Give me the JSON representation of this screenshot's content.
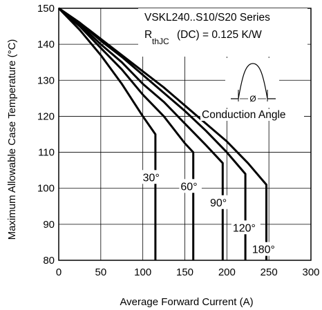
{
  "chart_data": {
    "type": "line",
    "xlabel": "Average Forward Current (A)",
    "ylabel": "Maximum Allowable Case Temperature (°C)",
    "xlim": [
      0,
      300
    ],
    "ylim": [
      80,
      150
    ],
    "x_ticks": [
      "0",
      "50",
      "100",
      "150",
      "200",
      "250",
      "300"
    ],
    "y_ticks": [
      "80",
      "90",
      "100",
      "110",
      "120",
      "130",
      "140",
      "150"
    ],
    "grid": true,
    "annotations": {
      "series_title": "VSKL240..S10/S20 Series",
      "rth_symbol": "R",
      "rth_subscript": "thJC",
      "rth_value": "(DC) = 0.125 K/W",
      "conduction_angle": "Conduction Angle",
      "phi": "Ø"
    },
    "series": [
      {
        "name": "30°",
        "label_at": [
          100,
          102
        ],
        "points": [
          [
            0,
            150
          ],
          [
            25,
            144
          ],
          [
            50,
            137
          ],
          [
            75,
            129
          ],
          [
            100,
            120
          ],
          [
            115,
            115
          ],
          [
            115,
            80
          ]
        ]
      },
      {
        "name": "60°",
        "label_at": [
          145,
          99.5
        ],
        "points": [
          [
            0,
            150
          ],
          [
            25,
            145
          ],
          [
            50,
            139
          ],
          [
            75,
            133
          ],
          [
            100,
            126
          ],
          [
            125,
            120
          ],
          [
            150,
            112.5
          ],
          [
            160,
            110
          ],
          [
            160,
            80
          ]
        ]
      },
      {
        "name": "90°",
        "label_at": [
          180,
          95
        ],
        "points": [
          [
            0,
            150
          ],
          [
            25,
            145.5
          ],
          [
            50,
            140
          ],
          [
            75,
            135
          ],
          [
            100,
            129
          ],
          [
            125,
            124
          ],
          [
            150,
            118
          ],
          [
            175,
            112
          ],
          [
            195,
            107
          ],
          [
            195,
            80
          ]
        ]
      },
      {
        "name": "120°",
        "label_at": [
          207,
          88
        ],
        "points": [
          [
            0,
            150
          ],
          [
            25,
            146
          ],
          [
            50,
            141
          ],
          [
            75,
            136.5
          ],
          [
            100,
            131.5
          ],
          [
            125,
            126.5
          ],
          [
            150,
            121.5
          ],
          [
            175,
            116
          ],
          [
            200,
            110
          ],
          [
            222,
            104
          ],
          [
            222,
            80
          ]
        ]
      },
      {
        "name": "180°",
        "label_at": [
          230,
          82
        ],
        "points": [
          [
            0,
            150
          ],
          [
            25,
            146
          ],
          [
            50,
            141.5
          ],
          [
            75,
            137
          ],
          [
            100,
            132.5
          ],
          [
            125,
            128
          ],
          [
            150,
            123
          ],
          [
            175,
            118
          ],
          [
            200,
            113
          ],
          [
            225,
            107
          ],
          [
            247,
            101
          ],
          [
            247,
            80
          ]
        ]
      }
    ]
  }
}
